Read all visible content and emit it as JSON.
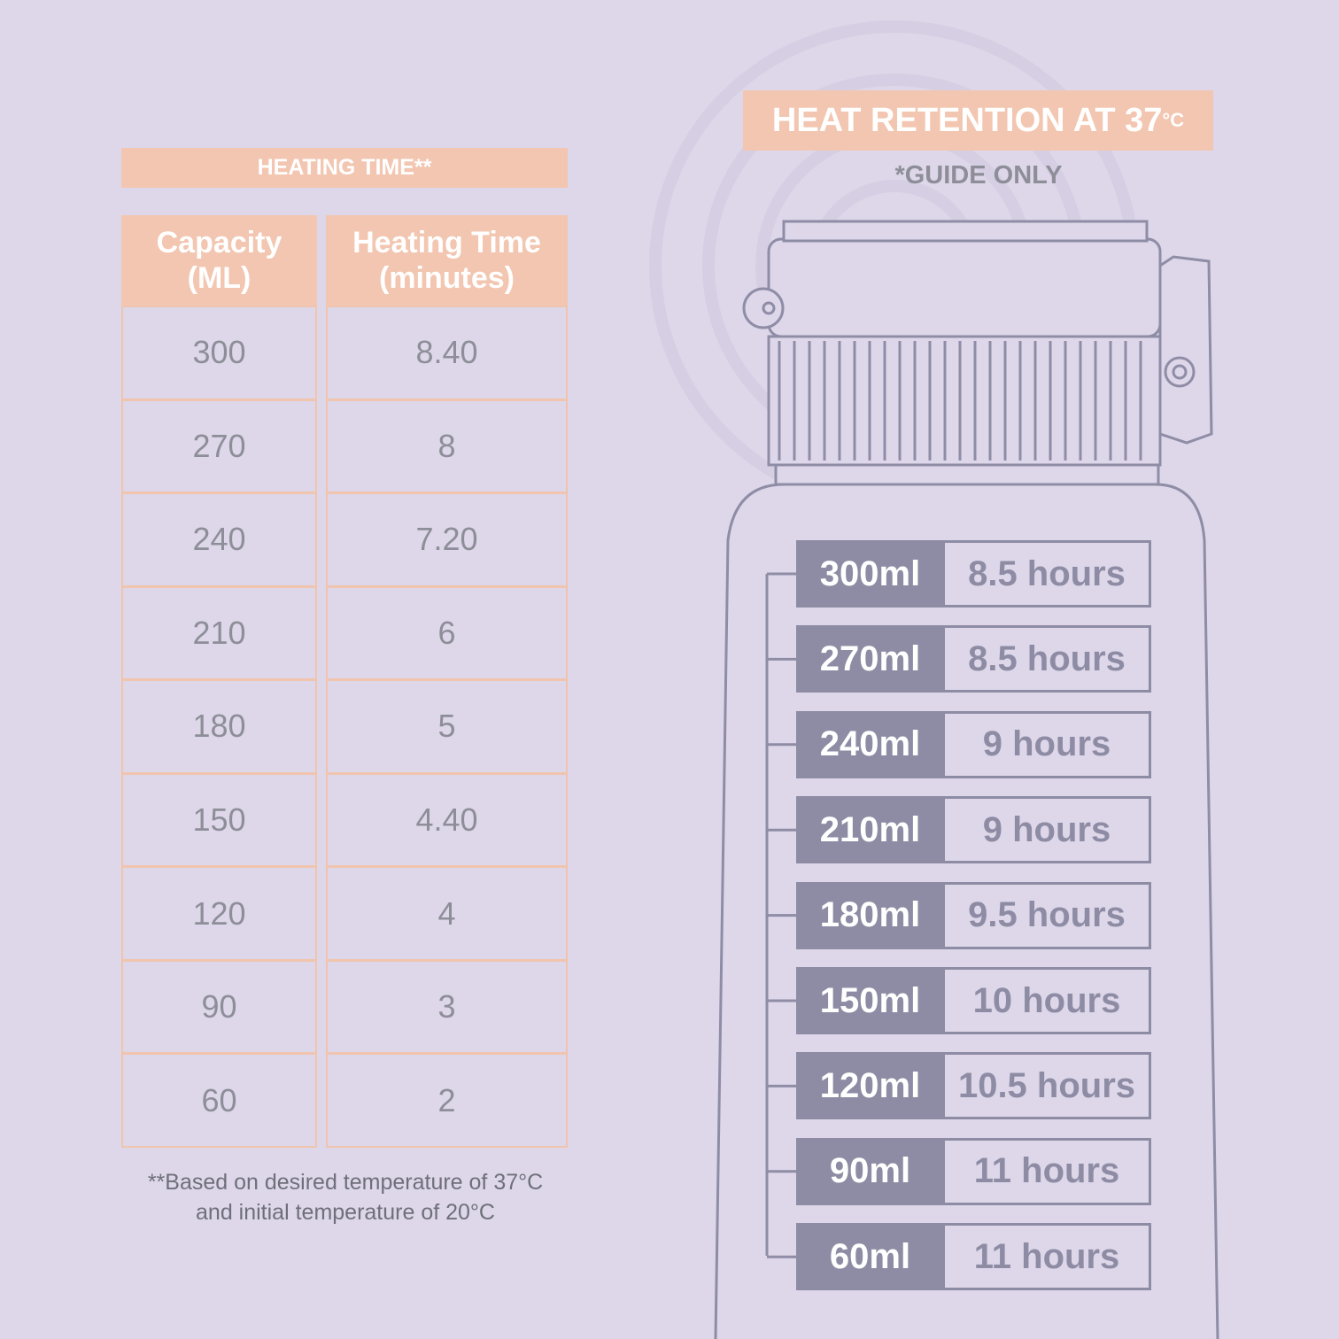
{
  "heating": {
    "title": "HEATING TIME**",
    "columns": [
      [
        "Capacity",
        "(ML)"
      ],
      [
        "Heating Time",
        "(minutes)"
      ]
    ],
    "rows": [
      [
        "300",
        "8.40"
      ],
      [
        "270",
        "8"
      ],
      [
        "240",
        "7.20"
      ],
      [
        "210",
        "6"
      ],
      [
        "180",
        "5"
      ],
      [
        "150",
        "4.40"
      ],
      [
        "120",
        "4"
      ],
      [
        "90",
        "3"
      ],
      [
        "60",
        "2"
      ]
    ],
    "footnote": [
      "**Based on desired temperature of 37°C",
      "and initial temperature of 20°C"
    ]
  },
  "retention": {
    "title": "HEAT RETENTION AT 37",
    "title_unit": "°C",
    "subtitle": "*GUIDE ONLY",
    "rows": [
      [
        "300ml",
        "8.5 hours"
      ],
      [
        "270ml",
        "8.5 hours"
      ],
      [
        "240ml",
        "9 hours"
      ],
      [
        "210ml",
        "9 hours"
      ],
      [
        "180ml",
        "9.5 hours"
      ],
      [
        "150ml",
        "10 hours"
      ],
      [
        "120ml",
        "10.5 hours"
      ],
      [
        "90ml",
        "11 hours"
      ],
      [
        "60ml",
        "11 hours"
      ]
    ]
  }
}
